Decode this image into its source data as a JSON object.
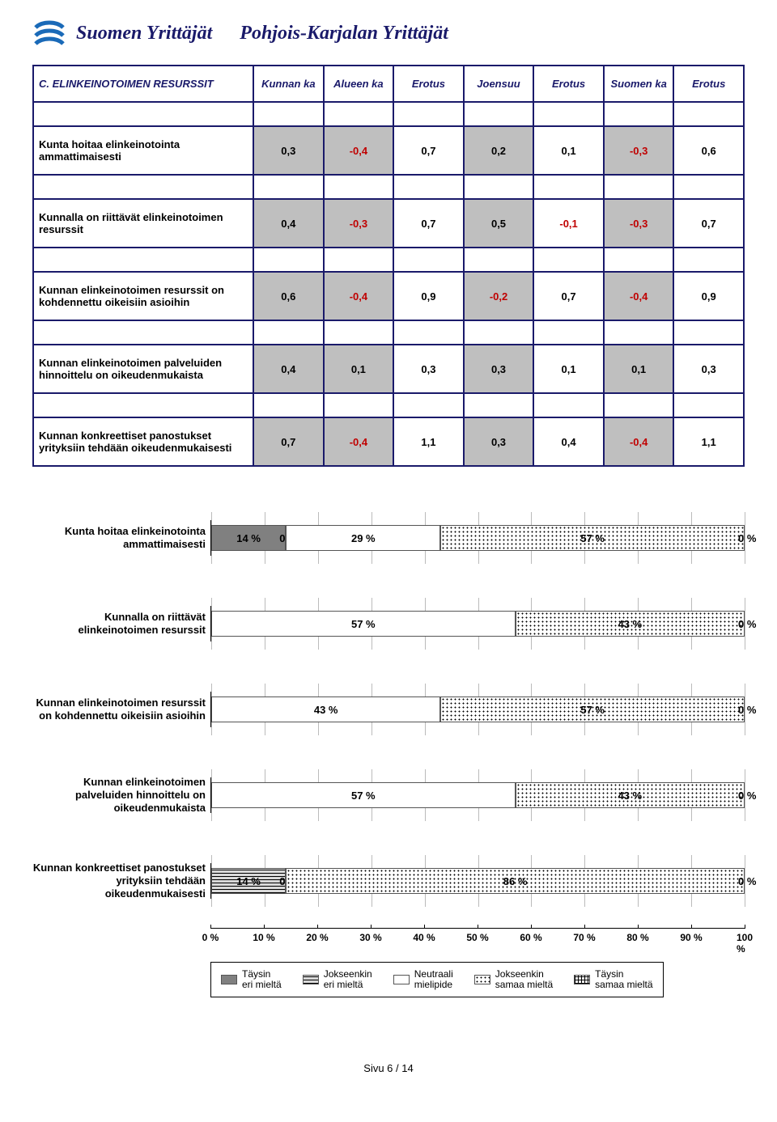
{
  "header": {
    "org1": "Suomen Yrittäjät",
    "org2": "Pohjois-Karjalan Yrittäjät"
  },
  "table": {
    "title": "C. ELINKEINOTOIMEN RESURSSIT",
    "columns": [
      "Kunnan ka",
      "Alueen ka",
      "Erotus",
      "Joensuu",
      "Erotus",
      "Suomen ka",
      "Erotus"
    ],
    "erotus_cols": [
      2,
      4,
      6
    ],
    "rows": [
      {
        "label": "Kunta hoitaa elinkeinotointa ammattimaisesti",
        "vals": [
          "0,3",
          "-0,4",
          "0,7",
          "0,2",
          "0,1",
          "-0,3",
          "0,6"
        ]
      },
      {
        "label": "Kunnalla on riittävät elinkeinotoimen resurssit",
        "vals": [
          "0,4",
          "-0,3",
          "0,7",
          "0,5",
          "-0,1",
          "-0,3",
          "0,7"
        ]
      },
      {
        "label": "Kunnan elinkeinotoimen resurssit on kohdennettu oikeisiin asioihin",
        "vals": [
          "0,6",
          "-0,4",
          "0,9",
          "-0,2",
          "0,7",
          "-0,4",
          "0,9"
        ]
      },
      {
        "label": "Kunnan  elinkeinotoimen palveluiden hinnoittelu on oikeudenmukaista",
        "vals": [
          "0,4",
          "0,1",
          "0,3",
          "0,3",
          "0,1",
          "0,1",
          "0,3"
        ]
      },
      {
        "label": "Kunnan konkreettiset panostukset yrityksiin tehdään oikeudenmukaisesti",
        "vals": [
          "0,7",
          "-0,4",
          "1,1",
          "0,3",
          "0,4",
          "-0,4",
          "1,1"
        ]
      }
    ]
  },
  "chart": {
    "rows": [
      {
        "label": "Kunta hoitaa elinkeinotointa ammattimaisesti",
        "seg": [
          14,
          0,
          29,
          57,
          0
        ],
        "zero_pos": "inside-left"
      },
      {
        "label": "Kunnalla on riittävät elinkeinotoimen resurssit",
        "seg": [
          0,
          0,
          57,
          43,
          0
        ],
        "zero_pos": "outside"
      },
      {
        "label": "Kunnan elinkeinotoimen resurssit on kohdennettu oikeisiin asioihin",
        "seg": [
          0,
          0,
          43,
          57,
          0
        ],
        "zero_pos": "outside"
      },
      {
        "label": "Kunnan  elinkeinotoimen palveluiden hinnoittelu on oikeudenmukaista",
        "seg": [
          0,
          0,
          57,
          43,
          0
        ],
        "zero_pos": "outside"
      },
      {
        "label": "Kunnan konkreettiset panostukset yrityksiin tehdään oikeudenmukaisesti",
        "seg": [
          0,
          14,
          0,
          86,
          0
        ],
        "zero_pos": "outside"
      }
    ],
    "xticks": [
      0,
      10,
      20,
      30,
      40,
      50,
      60,
      70,
      80,
      90,
      100
    ],
    "legend": [
      "Täysin eri mieltä",
      "Jokseenkin eri mieltä",
      "Neutraali mielipide",
      "Jokseenkin samaa mieltä",
      "Täysin samaa mieltä"
    ],
    "patterns": [
      "pat-solid",
      "pat-hlines",
      "pat-white",
      "pat-dots",
      "pat-grid"
    ]
  },
  "footer": "Sivu 6 / 14"
}
